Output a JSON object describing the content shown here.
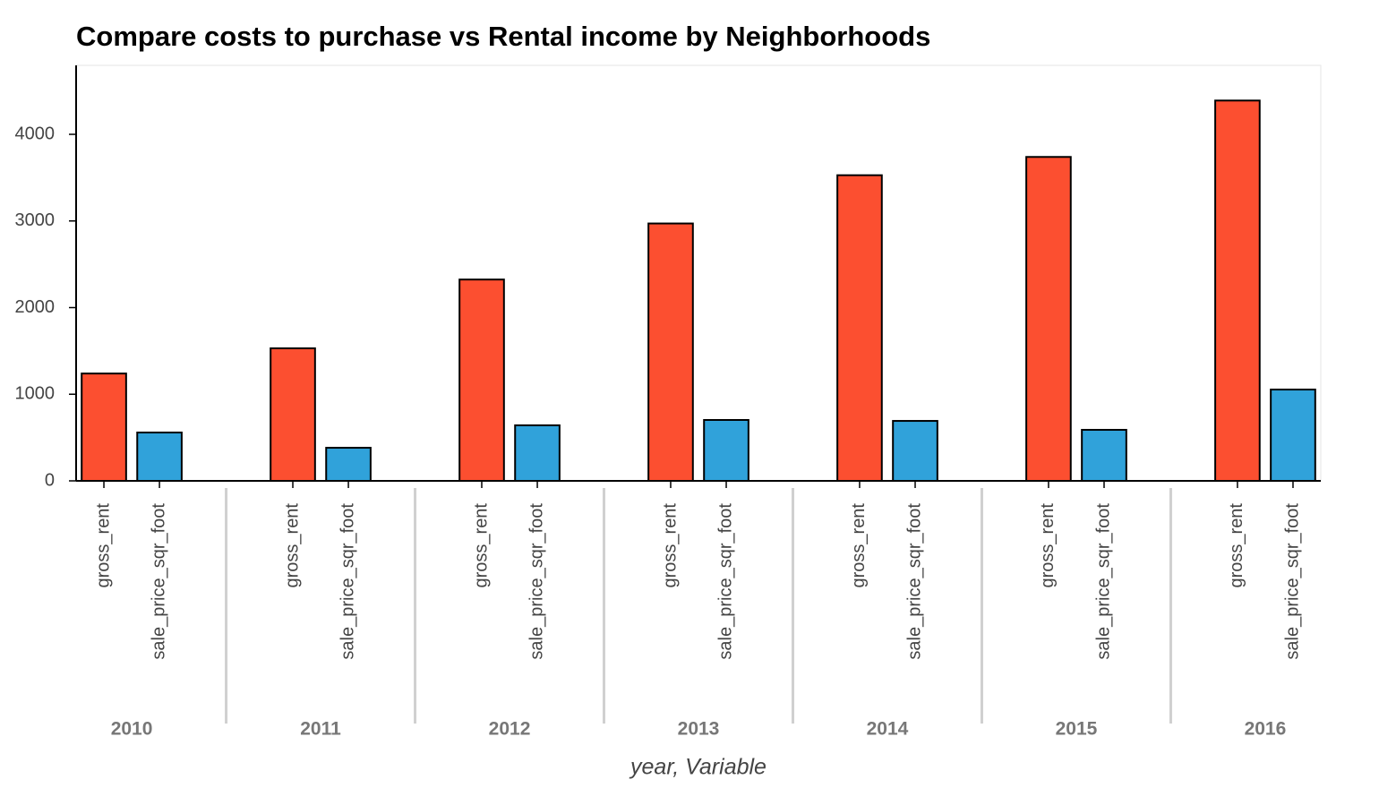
{
  "chart_data": {
    "type": "bar",
    "title": "Compare costs to purchase vs Rental income by Neighborhoods",
    "x_label": "year, Variable",
    "categories": [
      "2010",
      "2011",
      "2012",
      "2013",
      "2014",
      "2015",
      "2016"
    ],
    "series": [
      {
        "name": "gross_rent",
        "color": "#fc4f30",
        "values": [
          1239,
          1530,
          2324,
          2971,
          3528,
          3739,
          4390
        ]
      },
      {
        "name": "sale_price_sqr_foot",
        "color": "#30a2da",
        "values": [
          558,
          382,
          641,
          703,
          692,
          589,
          1054
        ]
      }
    ],
    "ylim": [
      0,
      4796
    ],
    "yticks": [
      0,
      1000,
      2000,
      3000,
      4000
    ]
  }
}
